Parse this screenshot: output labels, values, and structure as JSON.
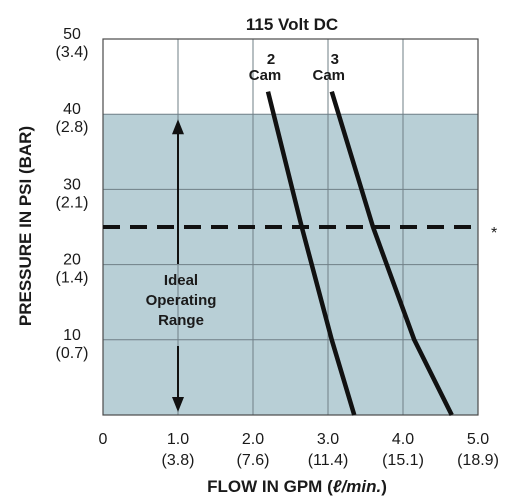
{
  "chart_data": {
    "type": "line",
    "title": "115 Volt DC",
    "xlabel_main": "FLOW IN GPM (",
    "xlabel_unit": "ℓ/min.",
    "xlabel_close": ")",
    "ylabel": "PRESSURE IN PSI (BAR)",
    "xlim": [
      0,
      5
    ],
    "ylim": [
      0,
      50
    ],
    "x_ticks": [
      {
        "value": 0,
        "label": "0",
        "sub": ""
      },
      {
        "value": 1,
        "label": "1.0",
        "sub": "(3.8)"
      },
      {
        "value": 2,
        "label": "2.0",
        "sub": "(7.6)"
      },
      {
        "value": 3,
        "label": "3.0",
        "sub": "(11.4)"
      },
      {
        "value": 4,
        "label": "4.0",
        "sub": "(15.1)"
      },
      {
        "value": 5,
        "label": "5.0",
        "sub": "(18.9)"
      }
    ],
    "y_ticks": [
      {
        "value": 10,
        "label": "10",
        "sub": "(0.7)"
      },
      {
        "value": 20,
        "label": "20",
        "sub": "(1.4)"
      },
      {
        "value": 30,
        "label": "30",
        "sub": "(2.1)"
      },
      {
        "value": 40,
        "label": "40",
        "sub": "(2.8)"
      },
      {
        "value": 50,
        "label": "50",
        "sub": "(3.4)"
      }
    ],
    "grid": true,
    "series": [
      {
        "name_line1": "2",
        "name_line2": "Cam",
        "x": [
          2.2,
          2.65,
          3.05,
          3.35
        ],
        "y": [
          43,
          25,
          10,
          0
        ]
      },
      {
        "name_line1": "3",
        "name_line2": "Cam",
        "x": [
          3.05,
          3.6,
          4.15,
          4.65
        ],
        "y": [
          43,
          25,
          10,
          0
        ]
      }
    ],
    "reference_line": {
      "y": 25,
      "style": "dashed",
      "note": "*"
    },
    "shaded_region": {
      "y_from": 0,
      "y_to": 40,
      "color": "#b8cfd6"
    },
    "annotation": {
      "lines": [
        "Ideal",
        "Operating",
        "Range"
      ],
      "arrow_x": 1.0,
      "arrow_y_from": 0,
      "arrow_y_to": 40
    },
    "colors": {
      "line": "#111111",
      "grid": "#6f7f86",
      "plot_bg": "#ffffff"
    }
  }
}
